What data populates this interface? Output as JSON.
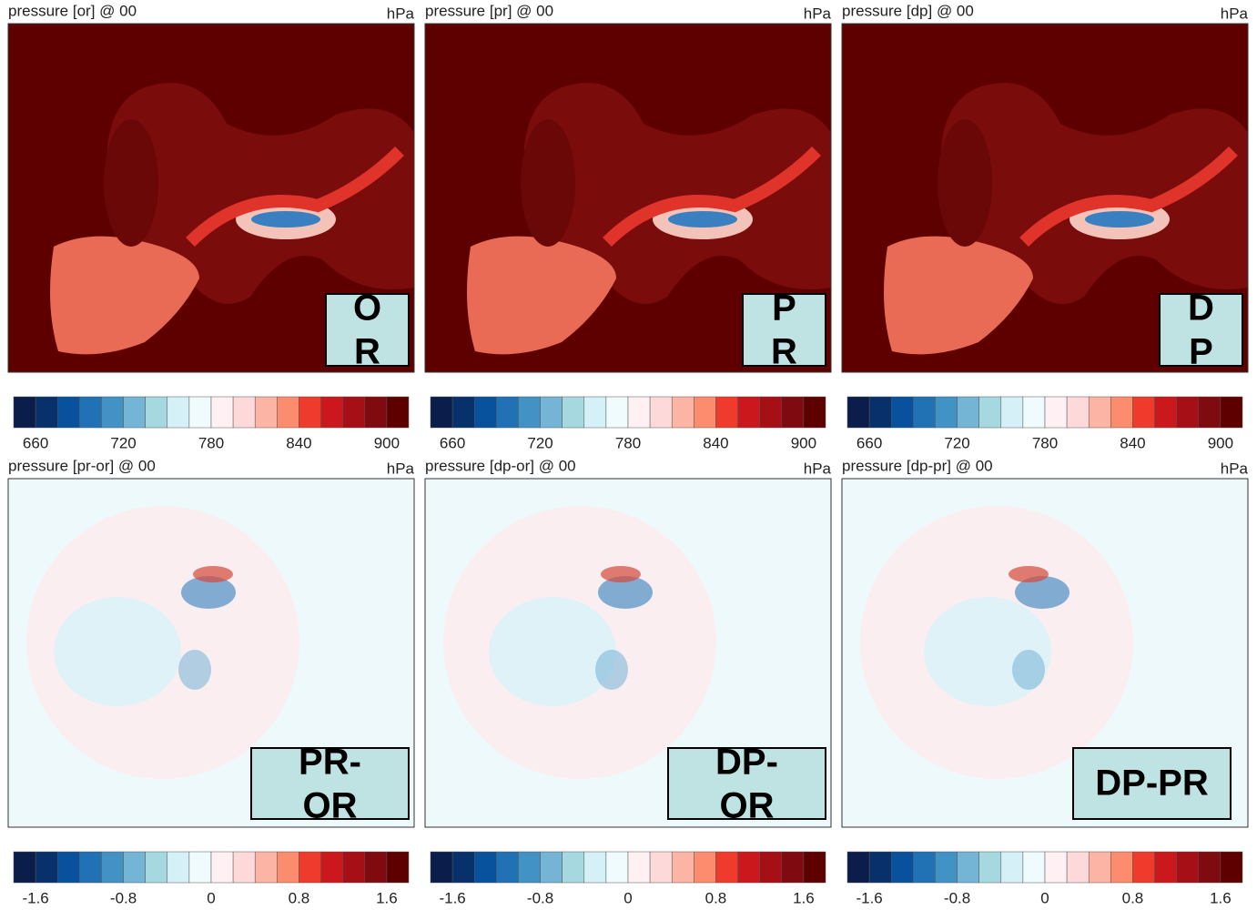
{
  "rows": [
    {
      "colorbar": {
        "colors": [
          "#0b1d4a",
          "#08306b",
          "#08519c",
          "#2171b5",
          "#4292c6",
          "#74b4d4",
          "#a6d8e0",
          "#d5f0f7",
          "#f0fbfd",
          "#fff0f3",
          "#fdd9d9",
          "#fcb5a5",
          "#fb8c6e",
          "#ef3b2c",
          "#cb181d",
          "#a50f15",
          "#7f0a10",
          "#5e0000"
        ],
        "lim": [
          645,
          915
        ],
        "ticks": [
          660,
          720,
          780,
          840,
          900
        ]
      },
      "panels": [
        {
          "title": "pressure [or] @ 00",
          "unit": "hPa",
          "label": [
            "O",
            "R"
          ]
        },
        {
          "title": "pressure [pr] @ 00",
          "unit": "hPa",
          "label": [
            "P",
            "R"
          ]
        },
        {
          "title": "pressure [dp] @ 00",
          "unit": "hPa",
          "label": [
            "D",
            "P"
          ]
        }
      ]
    },
    {
      "colorbar": {
        "colors": [
          "#0b1d4a",
          "#08306b",
          "#08519c",
          "#2171b5",
          "#4292c6",
          "#74b4d4",
          "#a6d8e0",
          "#d5f0f7",
          "#f0fbfd",
          "#fff0f3",
          "#fdd9d9",
          "#fcb5a5",
          "#fb8c6e",
          "#ef3b2c",
          "#cb181d",
          "#a50f15",
          "#7f0a10",
          "#5e0000"
        ],
        "lim": [
          -1.8,
          1.8
        ],
        "ticks": [
          -1.6,
          -0.8,
          0,
          0.8,
          1.6
        ]
      },
      "panels": [
        {
          "title": "pressure [pr-or] @ 00",
          "unit": "hPa",
          "label": [
            "PR-",
            "OR"
          ]
        },
        {
          "title": "pressure [dp-or] @ 00",
          "unit": "hPa",
          "label": [
            "DP-",
            "OR"
          ]
        },
        {
          "title": "pressure [dp-pr] @ 00",
          "unit": "hPa",
          "label": [
            "DP-PR"
          ]
        }
      ]
    }
  ]
}
